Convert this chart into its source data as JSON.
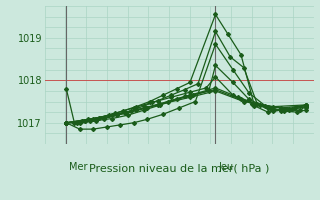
{
  "title": "Pression niveau de la mer( hPa )",
  "bg_color": "#cce8dd",
  "grid_color": "#aad4c4",
  "line_color": "#1a5c1a",
  "red_line_color": "#cc3333",
  "ylim": [
    1016.5,
    1019.75
  ],
  "yticks": [
    1017,
    1018,
    1019
  ],
  "xlim": [
    0,
    1
  ],
  "xline_mer": 0.08,
  "xline_jeu": 0.635,
  "red_hline_y": 1018.0,
  "series": [
    {
      "x": [
        0.08,
        0.11,
        0.15,
        0.19,
        0.24,
        0.29,
        0.34,
        0.39,
        0.44,
        0.49,
        0.54,
        0.635,
        0.68,
        0.73,
        0.78,
        0.83,
        0.88,
        0.93,
        0.97
      ],
      "y": [
        1017.8,
        1017.0,
        1017.05,
        1017.1,
        1017.18,
        1017.28,
        1017.38,
        1017.5,
        1017.65,
        1017.8,
        1017.95,
        1019.55,
        1019.1,
        1018.6,
        1017.4,
        1017.25,
        1017.3,
        1017.35,
        1017.42
      ]
    },
    {
      "x": [
        0.08,
        0.12,
        0.17,
        0.22,
        0.27,
        0.32,
        0.37,
        0.42,
        0.47,
        0.52,
        0.57,
        0.635,
        0.69,
        0.74,
        0.79,
        0.85,
        0.91,
        0.97
      ],
      "y": [
        1017.0,
        1017.0,
        1017.05,
        1017.1,
        1017.18,
        1017.28,
        1017.4,
        1017.52,
        1017.65,
        1017.78,
        1017.92,
        1019.15,
        1018.55,
        1018.3,
        1017.45,
        1017.28,
        1017.32,
        1017.42
      ]
    },
    {
      "x": [
        0.08,
        0.13,
        0.18,
        0.23,
        0.28,
        0.33,
        0.38,
        0.44,
        0.5,
        0.56,
        0.635,
        0.7,
        0.76,
        0.82,
        0.88,
        0.94,
        0.97
      ],
      "y": [
        1017.0,
        1016.85,
        1016.85,
        1016.9,
        1016.95,
        1017.0,
        1017.08,
        1017.2,
        1017.35,
        1017.5,
        1018.85,
        1018.25,
        1017.7,
        1017.4,
        1017.28,
        1017.25,
        1017.3
      ]
    },
    {
      "x": [
        0.08,
        0.13,
        0.19,
        0.25,
        0.31,
        0.37,
        0.43,
        0.49,
        0.55,
        0.61,
        0.635,
        0.7,
        0.76,
        0.83,
        0.89,
        0.95,
        0.97
      ],
      "y": [
        1017.0,
        1017.0,
        1017.05,
        1017.1,
        1017.18,
        1017.3,
        1017.42,
        1017.55,
        1017.65,
        1017.75,
        1018.35,
        1017.95,
        1017.55,
        1017.35,
        1017.28,
        1017.3,
        1017.38
      ]
    },
    {
      "x": [
        0.08,
        0.14,
        0.2,
        0.26,
        0.33,
        0.4,
        0.47,
        0.54,
        0.6,
        0.635,
        0.7,
        0.77,
        0.84,
        0.91,
        0.97
      ],
      "y": [
        1017.0,
        1017.05,
        1017.12,
        1017.22,
        1017.35,
        1017.48,
        1017.6,
        1017.72,
        1017.82,
        1018.08,
        1017.65,
        1017.45,
        1017.32,
        1017.3,
        1017.38
      ]
    },
    {
      "x": [
        0.08,
        0.15,
        0.22,
        0.3,
        0.38,
        0.46,
        0.54,
        0.635,
        0.72,
        0.8,
        0.88,
        0.97
      ],
      "y": [
        1017.0,
        1017.05,
        1017.12,
        1017.22,
        1017.35,
        1017.5,
        1017.65,
        1017.82,
        1017.6,
        1017.42,
        1017.35,
        1017.4
      ]
    },
    {
      "x": [
        0.08,
        0.16,
        0.25,
        0.34,
        0.43,
        0.52,
        0.635,
        0.73,
        0.83,
        0.92,
        0.97
      ],
      "y": [
        1017.0,
        1017.08,
        1017.18,
        1017.3,
        1017.45,
        1017.62,
        1017.78,
        1017.55,
        1017.38,
        1017.32,
        1017.38
      ]
    },
    {
      "x": [
        0.08,
        0.18,
        0.3,
        0.42,
        0.54,
        0.635,
        0.74,
        0.85,
        0.97
      ],
      "y": [
        1017.0,
        1017.1,
        1017.25,
        1017.42,
        1017.6,
        1017.75,
        1017.5,
        1017.38,
        1017.42
      ]
    }
  ]
}
